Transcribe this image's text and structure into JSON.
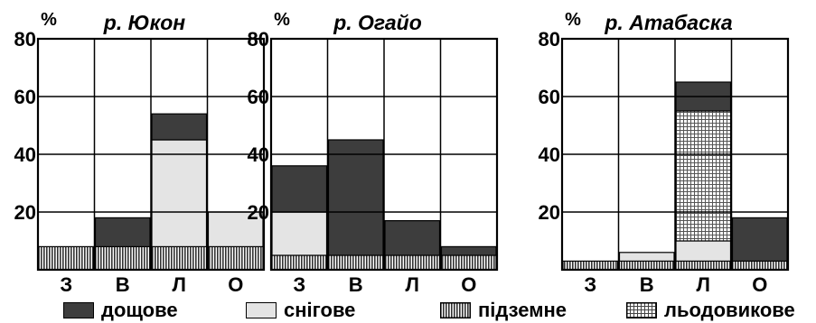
{
  "chart_data": {
    "type": "bar",
    "y_unit": "%",
    "ylim": [
      0,
      80
    ],
    "y_ticks": [
      20,
      40,
      60,
      80
    ],
    "categories": [
      "З",
      "В",
      "Л",
      "О"
    ],
    "panels": [
      {
        "title": "р. Юкон",
        "series": [
          {
            "name": "підземне",
            "values": [
              8,
              8,
              8,
              8
            ]
          },
          {
            "name": "снігове",
            "values": [
              0,
              0,
              37,
              12
            ]
          },
          {
            "name": "льодовикове",
            "values": [
              0,
              0,
              0,
              0
            ]
          },
          {
            "name": "дощове",
            "values": [
              0,
              10,
              9,
              0
            ]
          }
        ]
      },
      {
        "title": "р. Огайо",
        "series": [
          {
            "name": "підземне",
            "values": [
              5,
              5,
              5,
              5
            ]
          },
          {
            "name": "снігове",
            "values": [
              15,
              0,
              0,
              0
            ]
          },
          {
            "name": "льодовикове",
            "values": [
              0,
              0,
              0,
              0
            ]
          },
          {
            "name": "дощове",
            "values": [
              16,
              40,
              12,
              3
            ]
          }
        ]
      },
      {
        "title": "р. Атабаска",
        "series": [
          {
            "name": "підземне",
            "values": [
              3,
              3,
              3,
              3
            ]
          },
          {
            "name": "снігове",
            "values": [
              0,
              3,
              7,
              0
            ]
          },
          {
            "name": "льодовикове",
            "values": [
              0,
              0,
              45,
              0
            ]
          },
          {
            "name": "дощове",
            "values": [
              0,
              0,
              10,
              15
            ]
          }
        ]
      }
    ],
    "legend": [
      {
        "key": "дощове",
        "label": "дощове"
      },
      {
        "key": "снігове",
        "label": "снігове"
      },
      {
        "key": "підземне",
        "label": "підземне"
      },
      {
        "key": "льодовикове",
        "label": "льодовикове"
      }
    ],
    "legend_position": "bottom",
    "grid": true
  }
}
